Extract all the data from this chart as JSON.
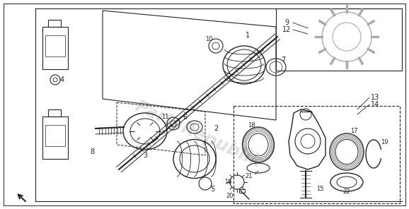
{
  "bg_color": "#ffffff",
  "line_color": "#222222",
  "figsize": [
    5.78,
    2.96
  ],
  "dpi": 100
}
